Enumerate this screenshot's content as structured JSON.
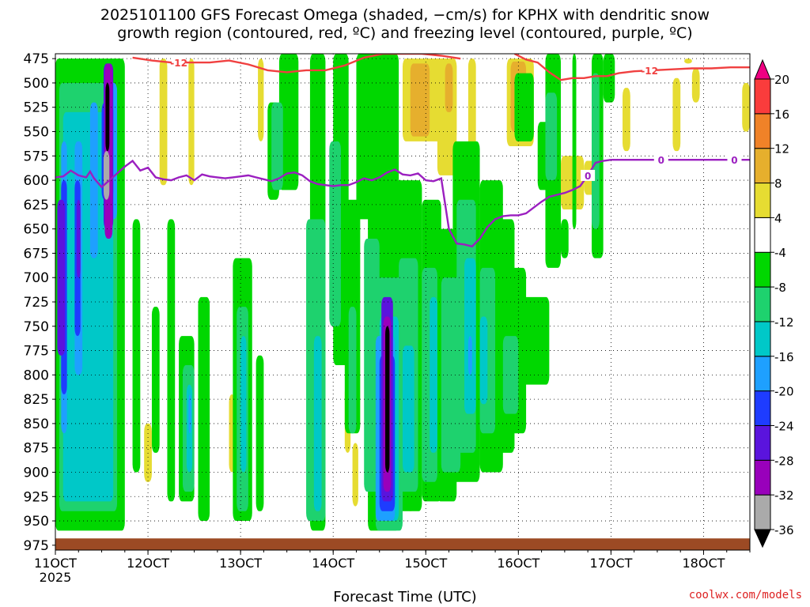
{
  "title": "2025101100 GFS Forecast Omega (shaded, −cm/s) for KPHX with dendritic snow\ngrowth region (contoured, red, ºC) and freezing level (contoured, purple, ºC)",
  "credit": "coolwx.com/models",
  "chart_data": {
    "type": "heatmap",
    "xlabel": "Forecast Time (UTC)",
    "ylabel": "",
    "x_ticks": [
      "11OCT",
      "12OCT",
      "13OCT",
      "14OCT",
      "15OCT",
      "16OCT",
      "17OCT",
      "18OCT"
    ],
    "x_subtick": "2025",
    "xlim_hours_from_start": [
      0,
      180
    ],
    "y_ticks": [
      475,
      500,
      525,
      550,
      575,
      600,
      625,
      650,
      675,
      700,
      725,
      750,
      775,
      800,
      825,
      850,
      875,
      900,
      925,
      950,
      975
    ],
    "ylim_hPa": [
      975,
      475
    ],
    "grid": true,
    "colorbar": {
      "levels": [
        -36,
        -32,
        -28,
        -24,
        -20,
        -16,
        -12,
        -8,
        -4,
        4,
        8,
        12,
        16,
        20
      ],
      "colors": [
        "#000000",
        "#aaaaaa",
        "#9900bb",
        "#5a14dd",
        "#1e3cff",
        "#1ea0ff",
        "#00c8c8",
        "#1ed26e",
        "#00d700",
        "#ffffff",
        "#e6dc32",
        "#e6af2d",
        "#f08228",
        "#fa3c3c",
        "#f00082"
      ]
    },
    "series": [
      {
        "name": "0",
        "color": "#9b1fc0",
        "label_points": [
          "138h",
          "157h",
          "176h"
        ],
        "x": [
          0,
          2,
          4,
          6,
          8,
          9,
          10,
          12,
          14,
          16,
          18,
          20,
          22,
          24,
          26,
          28,
          30,
          32,
          34,
          36,
          38,
          40,
          42,
          44,
          46,
          48,
          50,
          52,
          54,
          56,
          58,
          60,
          62,
          64,
          66,
          68,
          70,
          72,
          74,
          76,
          78,
          80,
          82,
          84,
          86,
          88,
          90,
          92,
          94,
          96,
          98,
          100,
          102,
          104,
          106,
          108,
          110,
          112,
          114,
          116,
          118,
          120,
          122,
          124,
          126,
          128,
          130,
          132,
          134,
          136,
          138,
          140,
          142,
          144,
          146,
          148,
          150,
          152,
          154,
          156,
          158,
          160,
          162,
          164,
          166,
          168,
          170,
          172,
          174,
          176,
          178,
          180
        ],
        "y": [
          597,
          596,
          590,
          595,
          597,
          591,
          598,
          607,
          600,
          593,
          586,
          580,
          590,
          587,
          597,
          599,
          600,
          597,
          595,
          600,
          594,
          596,
          597,
          598,
          597,
          596,
          595,
          597,
          599,
          601,
          598,
          593,
          592,
          595,
          601,
          604,
          605,
          606,
          605,
          605,
          602,
          598,
          600,
          597,
          592,
          589,
          594,
          595,
          593,
          600,
          601,
          598,
          650,
          665,
          666,
          668,
          660,
          648,
          640,
          637,
          636,
          636,
          634,
          628,
          622,
          617,
          615,
          613,
          610,
          606,
          595,
          582,
          580,
          579,
          579,
          579,
          579,
          579,
          579,
          579,
          579,
          579,
          579,
          579,
          579,
          579,
          579,
          579,
          579,
          579,
          579,
          579
        ]
      },
      {
        "name": "-12",
        "color": "#f04040",
        "label_points": [
          "32h",
          "154h"
        ],
        "segments": [
          {
            "x": [
              20,
              25,
              30,
              35,
              40,
              45,
              50,
              55,
              60,
              65,
              70,
              75,
              80,
              85,
              90,
              95,
              100,
              105
            ],
            "y": [
              474,
              477,
              479,
              479,
              479,
              477,
              481,
              487,
              489,
              487,
              487,
              482,
              474,
              470,
              470,
              470,
              472,
              475
            ]
          },
          {
            "x": [
              119,
              122,
              125,
              128,
              131,
              134,
              137,
              140,
              143,
              146,
              150,
              155,
              160,
              165,
              170,
              175,
              180
            ],
            "y": [
              470,
              476,
              479,
              489,
              497,
              495,
              495,
              493,
              493,
              490,
              488,
              487,
              486,
              485,
              485,
              484,
              484
            ]
          }
        ]
      }
    ]
  }
}
